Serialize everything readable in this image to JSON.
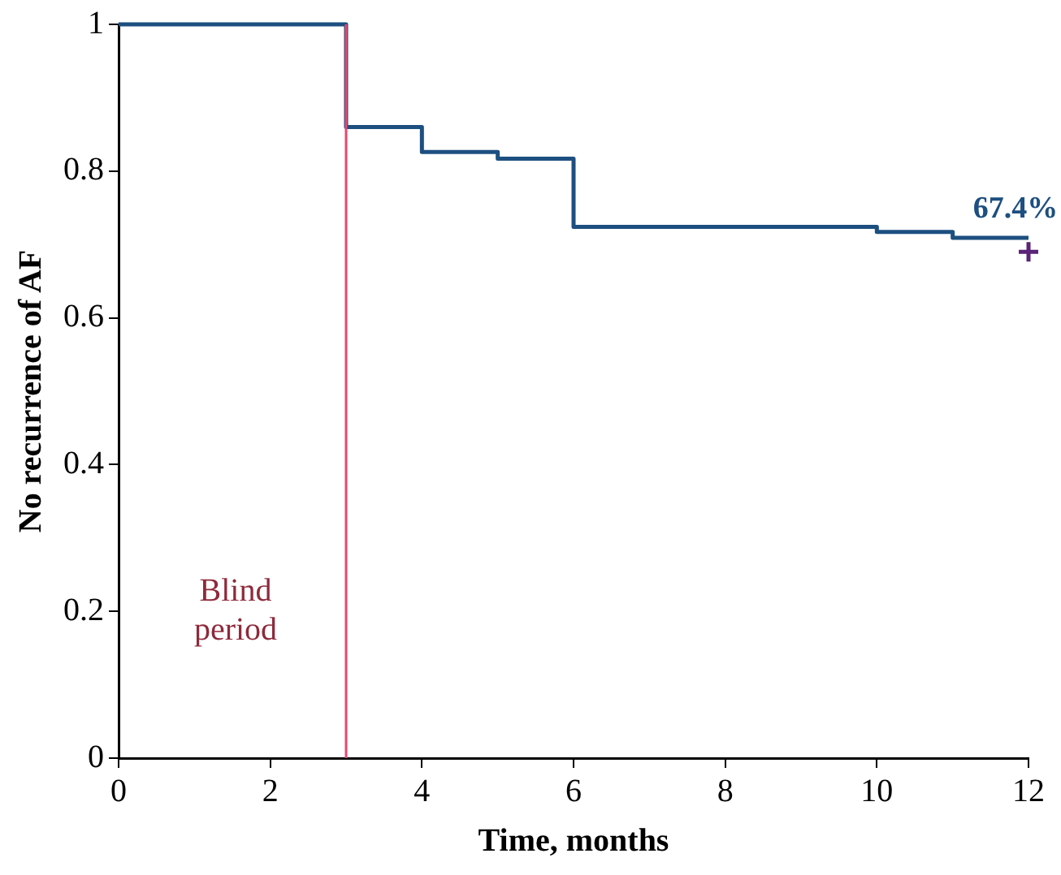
{
  "chart_data": {
    "type": "step",
    "xlabel": "Time, months",
    "ylabel": "No recurrence of AF",
    "xlim": [
      0,
      12
    ],
    "xticks": [
      0,
      2,
      4,
      6,
      8,
      10,
      12
    ],
    "ylim": [
      0,
      1
    ],
    "yticks": [
      0,
      0.2,
      0.4,
      0.6,
      0.8,
      1
    ],
    "grid": false,
    "legend": false,
    "series": [
      {
        "type": "step",
        "color": "#1d4f80",
        "x": [
          0,
          3,
          4,
          5,
          6,
          10,
          11,
          12
        ],
        "values": [
          1,
          0.86,
          0.826,
          0.817,
          0.724,
          0.717,
          0.709,
          0.709
        ],
        "marker": "none"
      },
      {
        "type": "scatter",
        "color": "#5a2378",
        "x": [
          12
        ],
        "values": [
          0.69
        ],
        "marker": "cross"
      }
    ],
    "ref_lines": [
      {
        "axis": "x",
        "value": 3,
        "label": "Blind period",
        "color": "#e8476e"
      }
    ],
    "annotations": [
      {
        "text": "67.4%",
        "x": 12,
        "y": 0.709
      }
    ]
  }
}
